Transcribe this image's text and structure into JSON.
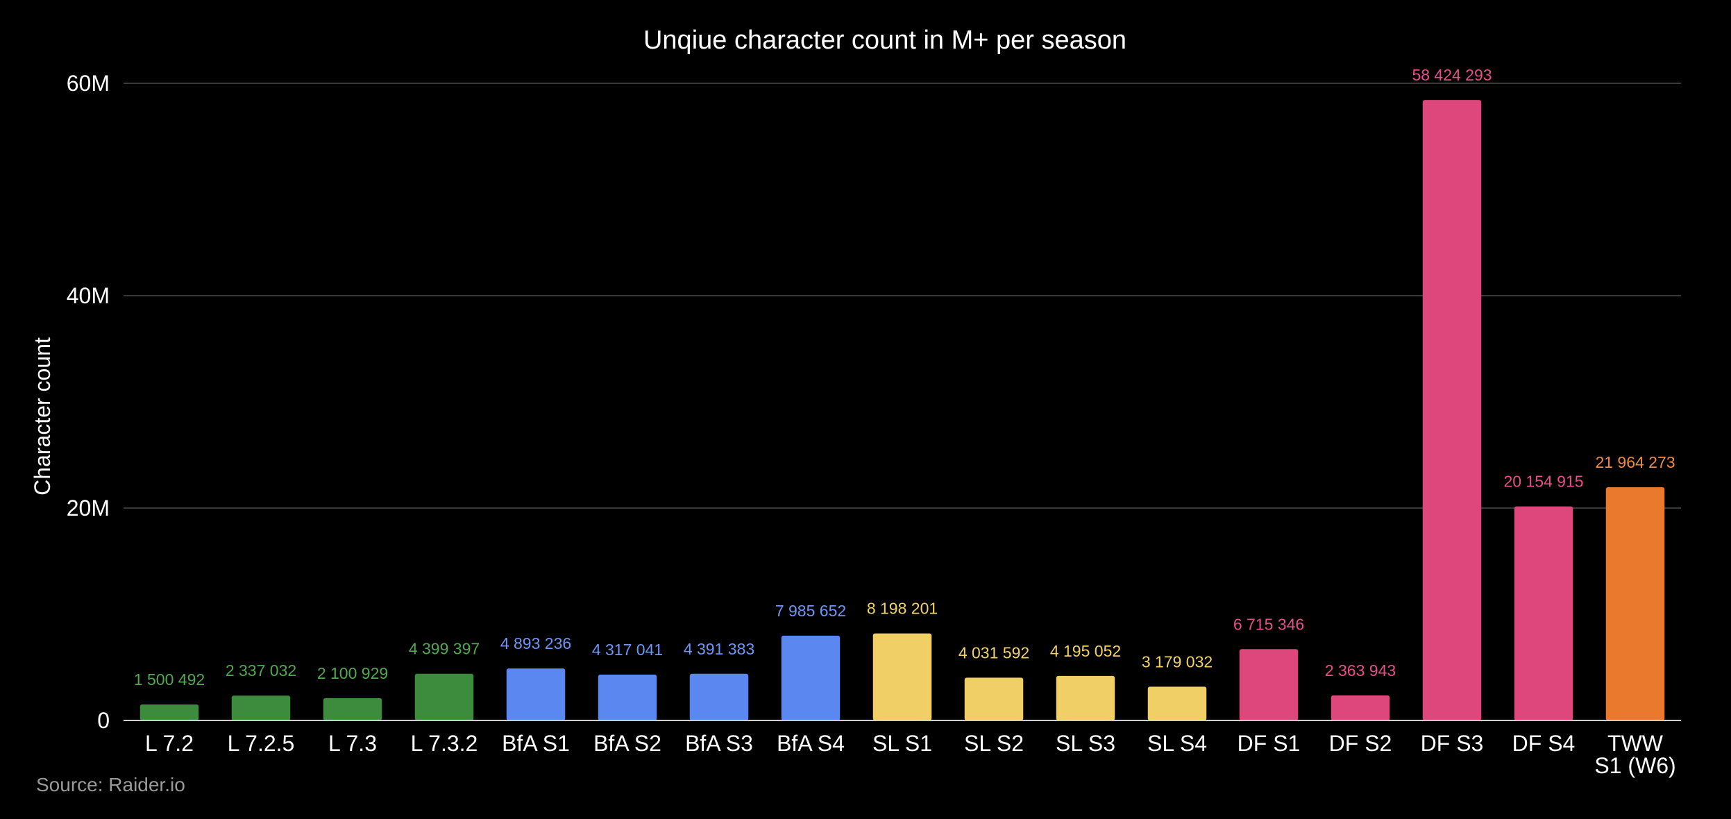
{
  "chart_data": {
    "type": "bar",
    "title": "Unqiue character count in M+ per season",
    "ylabel": "Character count",
    "xlabel": "",
    "ylim": [
      0,
      60000000
    ],
    "yticks": [
      {
        "value": 0,
        "label": "0"
      },
      {
        "value": 20000000,
        "label": "20M"
      },
      {
        "value": 40000000,
        "label": "40M"
      },
      {
        "value": 60000000,
        "label": "60M"
      }
    ],
    "grid": true,
    "legend": "none",
    "source": "Source: Raider.io",
    "categories": [
      "L 7.2",
      "L 7.2.5",
      "L 7.3",
      "L 7.3.2",
      "BfA S1",
      "BfA S2",
      "BfA S3",
      "BfA S4",
      "SL S1",
      "SL S2",
      "SL S3",
      "SL S4",
      "DF S1",
      "DF S2",
      "DF S3",
      "DF S4",
      "TWW S1 (W6)"
    ],
    "category_lines": [
      [
        "L 7.2"
      ],
      [
        "L 7.2.5"
      ],
      [
        "L 7.3"
      ],
      [
        "L 7.3.2"
      ],
      [
        "BfA S1"
      ],
      [
        "BfA S2"
      ],
      [
        "BfA S3"
      ],
      [
        "BfA S4"
      ],
      [
        "SL S1"
      ],
      [
        "SL S2"
      ],
      [
        "SL S3"
      ],
      [
        "SL S4"
      ],
      [
        "DF S1"
      ],
      [
        "DF S2"
      ],
      [
        "DF S3"
      ],
      [
        "DF S4"
      ],
      [
        "TWW",
        "S1 (W6)"
      ]
    ],
    "values": [
      1500492,
      2337032,
      2100929,
      4399397,
      4893236,
      4317041,
      4391383,
      7985652,
      8198201,
      4031592,
      4195052,
      3179032,
      6715346,
      2363943,
      58424293,
      20154915,
      21964273
    ],
    "data_labels": [
      "1 500 492",
      "2 337 032",
      "2 100 929",
      "4 399 397",
      "4 893 236",
      "4 317 041",
      "4 391 383",
      "7 985 652",
      "8 198 201",
      "4 031 592",
      "4 195 052",
      "3 179 032",
      "6 715 346",
      "2 363 943",
      "58 424 293",
      "20 154 915",
      "21 964 273"
    ],
    "bar_colors": [
      "#3d8b3d",
      "#3d8b3d",
      "#3d8b3d",
      "#3d8b3d",
      "#5b87f0",
      "#5b87f0",
      "#5b87f0",
      "#5b87f0",
      "#efcf66",
      "#efcf66",
      "#efcf66",
      "#efcf66",
      "#dd477b",
      "#dd477b",
      "#dd477b",
      "#dd477b",
      "#ea792e"
    ],
    "label_colors": [
      "#52a84f",
      "#52a84f",
      "#52a84f",
      "#52a84f",
      "#6f95f5",
      "#6f95f5",
      "#6f95f5",
      "#6f95f5",
      "#f2d266",
      "#f2d266",
      "#f2d266",
      "#f2d266",
      "#e5508a",
      "#e5508a",
      "#e5508a",
      "#e5508a",
      "#ef8a45"
    ]
  }
}
